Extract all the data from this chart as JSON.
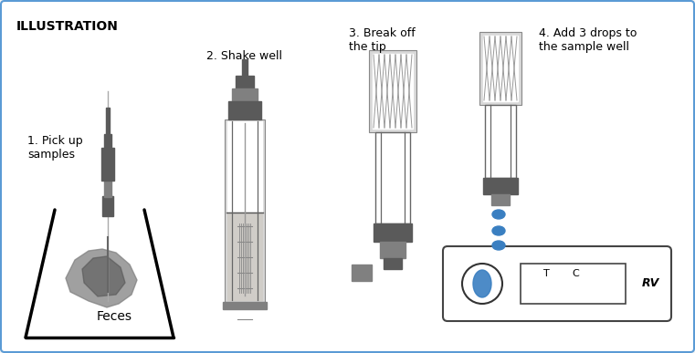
{
  "title": "ILLUSTRATION",
  "bg_color": "#f5f5f5",
  "border_color": "#5b9bd5",
  "text_color": "#000000",
  "gray_dark": "#5a5a5a",
  "gray_mid": "#808080",
  "gray_light": "#b0b0b0",
  "gray_lighter": "#d8d8d8",
  "blue_drop": "#3a7fc1",
  "step1_label": "1. Pick up\nsamples",
  "step2_label": "2. Shake well",
  "step3_label": "3. Break off\nthe tip",
  "step4_label": "4. Add 3 drops to\nthe sample well",
  "feces_label": "Feces",
  "rv_label": "RV",
  "t_label": "T",
  "c_label": "C"
}
